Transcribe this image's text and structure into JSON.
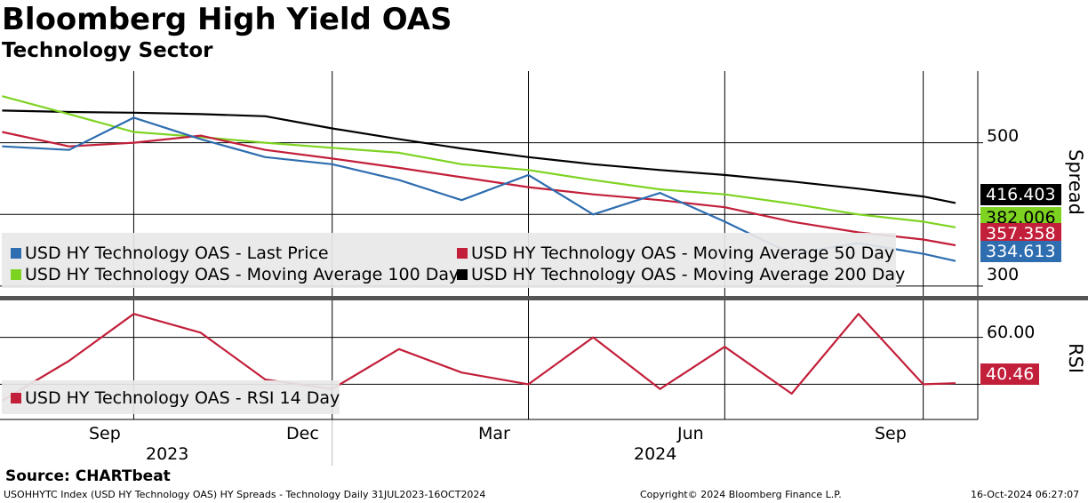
{
  "header": {
    "title": "Bloomberg High Yield OAS",
    "subtitle": "Technology Sector"
  },
  "footer": {
    "source": "Source: CHARTbeat",
    "ticker_line": "USOHHYTC Index (USD HY Technology OAS) HY Spreads - Technology  Daily 31JUL2023-16OCT2024",
    "copyright": "Copyright© 2024 Bloomberg Finance L.P.",
    "timestamp": "16-Oct-2024 06:27:07"
  },
  "colors": {
    "last_price": "#2e6db0",
    "ma50": "#c21f3a",
    "ma100": "#7ed321",
    "ma200": "#000000",
    "rsi": "#c21f3a",
    "legend_bg": "#e8e8e8"
  },
  "chart_data": [
    {
      "type": "line",
      "title": "Bloomberg High Yield OAS",
      "subtitle": "Technology Sector",
      "ylabel": "Spread",
      "yticks": [
        300,
        500
      ],
      "ylim": [
        290,
        600
      ],
      "grid": true,
      "legend": "bottom-left",
      "x": [
        "2023-08-01",
        "2023-09-01",
        "2023-10-01",
        "2023-11-01",
        "2023-12-01",
        "2024-01-01",
        "2024-02-01",
        "2024-03-01",
        "2024-04-01",
        "2024-05-01",
        "2024-06-01",
        "2024-07-01",
        "2024-08-01",
        "2024-09-01",
        "2024-10-01",
        "2024-10-16"
      ],
      "series": [
        {
          "name": "USD HY Technology OAS - Last Price",
          "color_key": "last_price",
          "last_label": "334.613",
          "values": [
            495,
            490,
            535,
            505,
            480,
            470,
            448,
            420,
            455,
            400,
            430,
            390,
            345,
            360,
            345,
            335
          ]
        },
        {
          "name": "USD HY Technology OAS - Moving Average 50 Day",
          "color_key": "ma50",
          "last_label": "357.358",
          "values": [
            515,
            495,
            500,
            510,
            490,
            478,
            465,
            452,
            438,
            428,
            420,
            410,
            390,
            375,
            365,
            357
          ]
        },
        {
          "name": "USD HY Technology OAS - Moving Average 100 Day",
          "color_key": "ma100",
          "last_label": "382.006",
          "values": [
            565,
            540,
            515,
            508,
            500,
            493,
            486,
            470,
            462,
            448,
            435,
            428,
            415,
            400,
            390,
            382
          ]
        },
        {
          "name": "USD HY Technology OAS - Moving Average 200 Day",
          "color_key": "ma200",
          "last_label": "416.403",
          "values": [
            545,
            543,
            542,
            540,
            537,
            520,
            505,
            492,
            480,
            470,
            462,
            455,
            446,
            436,
            425,
            416
          ]
        }
      ]
    },
    {
      "type": "line",
      "ylabel": "RSI",
      "yticks": [
        "60.00"
      ],
      "ylim": [
        25,
        75
      ],
      "legend": "bottom-left",
      "x_tick_labels": [
        "Sep",
        "Dec",
        "Mar",
        "Jun",
        "Sep"
      ],
      "x_year_labels": [
        "2023",
        "2024"
      ],
      "series": [
        {
          "name": "USD HY Technology OAS - RSI 14 Day",
          "color_key": "rsi",
          "last_label": "40.46",
          "values": [
            33,
            50,
            70,
            62,
            42,
            38,
            55,
            45,
            40,
            60,
            38,
            56,
            36,
            70,
            40,
            40.46
          ]
        }
      ]
    }
  ]
}
